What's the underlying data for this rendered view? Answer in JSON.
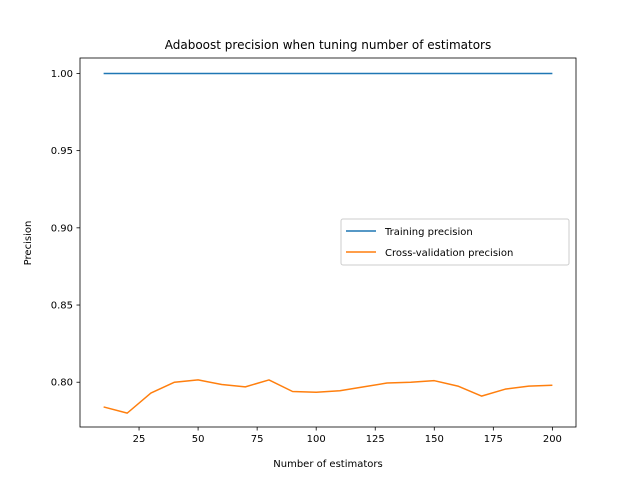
{
  "chart_data": {
    "type": "line",
    "title": "Adaboost precision when tuning number of estimators",
    "xlabel": "Number of estimators",
    "ylabel": "Precision",
    "xlim": [
      0,
      210
    ],
    "ylim": [
      0.771,
      1.01
    ],
    "xticks": [
      25,
      50,
      75,
      100,
      125,
      150,
      175,
      200
    ],
    "xtick_labels": [
      "25",
      "50",
      "75",
      "100",
      "125",
      "150",
      "175",
      "200"
    ],
    "yticks": [
      0.8,
      0.85,
      0.9,
      0.95,
      1.0
    ],
    "ytick_labels": [
      "0.80",
      "0.85",
      "0.90",
      "0.95",
      "1.00"
    ],
    "grid": false,
    "legend_position": "center-right",
    "x": [
      10,
      20,
      30,
      40,
      50,
      60,
      70,
      80,
      90,
      100,
      110,
      120,
      130,
      140,
      150,
      160,
      170,
      180,
      190,
      200
    ],
    "series": [
      {
        "name": "Training precision",
        "color": "#1f77b4",
        "values": [
          1.0,
          1.0,
          1.0,
          1.0,
          1.0,
          1.0,
          1.0,
          1.0,
          1.0,
          1.0,
          1.0,
          1.0,
          1.0,
          1.0,
          1.0,
          1.0,
          1.0,
          1.0,
          1.0,
          1.0
        ]
      },
      {
        "name": "Cross-validation precision",
        "color": "#ff7f0e",
        "values": [
          0.784,
          0.78,
          0.793,
          0.8,
          0.8015,
          0.7985,
          0.797,
          0.8015,
          0.794,
          0.7935,
          0.7945,
          0.797,
          0.7995,
          0.8,
          0.801,
          0.7975,
          0.791,
          0.7955,
          0.7975,
          0.798
        ]
      }
    ]
  }
}
